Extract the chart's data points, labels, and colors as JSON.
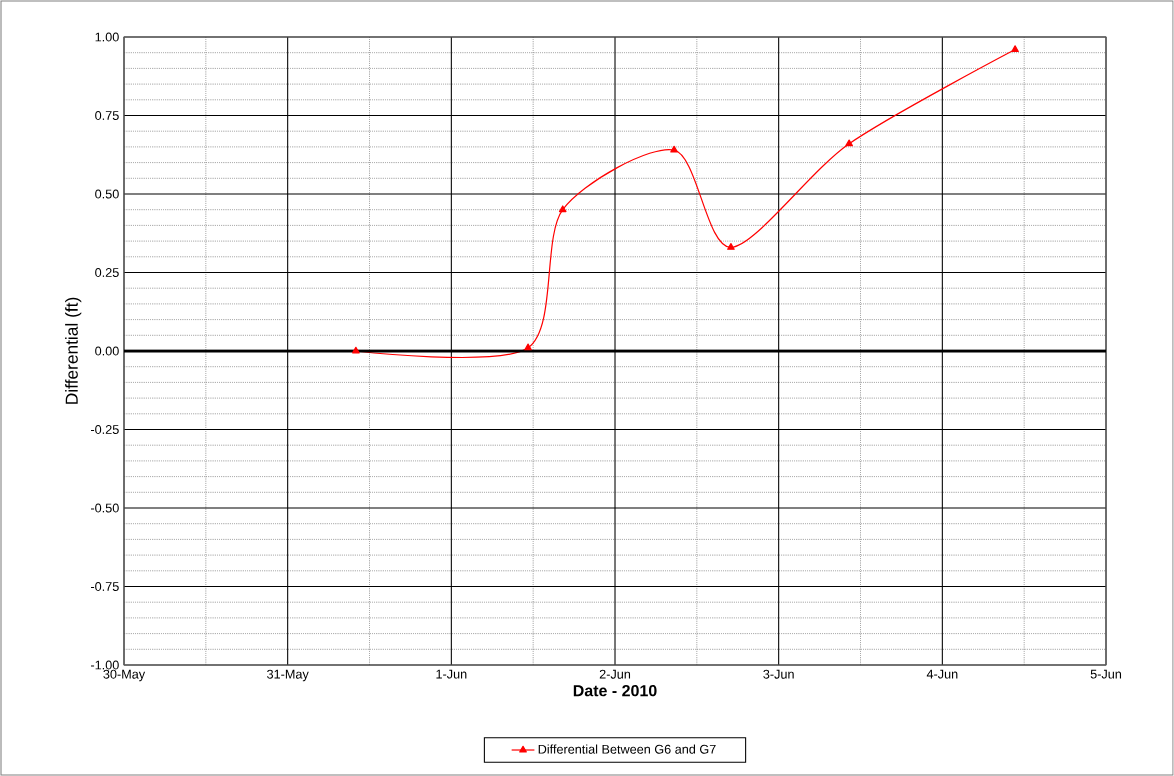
{
  "chart_data": {
    "type": "line",
    "xlabel": "Date - 2010",
    "ylabel": "Differential (ft)",
    "x": [
      "2010-05-31T10:00",
      "2010-06-01T11:15",
      "2010-06-01T16:20",
      "2010-06-02T08:40",
      "2010-06-02T17:00",
      "2010-06-03T10:20",
      "2010-06-04T10:40"
    ],
    "series": [
      {
        "name": "Differential Between G6 and G7",
        "color": "#ff0000",
        "values": [
          0.0,
          0.01,
          0.45,
          0.64,
          0.33,
          0.66,
          0.96
        ]
      }
    ],
    "xlim": [
      "2010-05-30",
      "2010-06-05"
    ],
    "xticks": [
      {
        "value": "2010-05-30",
        "label": "30-May"
      },
      {
        "value": "2010-05-31",
        "label": "31-May"
      },
      {
        "value": "2010-06-01",
        "label": "1-Jun"
      },
      {
        "value": "2010-06-02",
        "label": "2-Jun"
      },
      {
        "value": "2010-06-03",
        "label": "3-Jun"
      },
      {
        "value": "2010-06-04",
        "label": "4-Jun"
      },
      {
        "value": "2010-06-05",
        "label": "5-Jun"
      }
    ],
    "ylim": [
      -1,
      1
    ],
    "yticks": [
      {
        "value": -1,
        "label": "-1.00"
      },
      {
        "value": -0.75,
        "label": "-0.75"
      },
      {
        "value": -0.5,
        "label": "-0.50"
      },
      {
        "value": -0.25,
        "label": "-0.25"
      },
      {
        "value": 0,
        "label": "0.00"
      },
      {
        "value": 0.25,
        "label": "0.25"
      },
      {
        "value": 0.5,
        "label": "0.50"
      },
      {
        "value": 0.75,
        "label": "0.75"
      },
      {
        "value": 1,
        "label": "1.00"
      }
    ],
    "ref_lines": [
      {
        "axis": "y",
        "value": 0,
        "color": "#000000"
      }
    ],
    "grid": true,
    "legend": "bottom",
    "marker": "triangle",
    "line_style": "solid"
  }
}
